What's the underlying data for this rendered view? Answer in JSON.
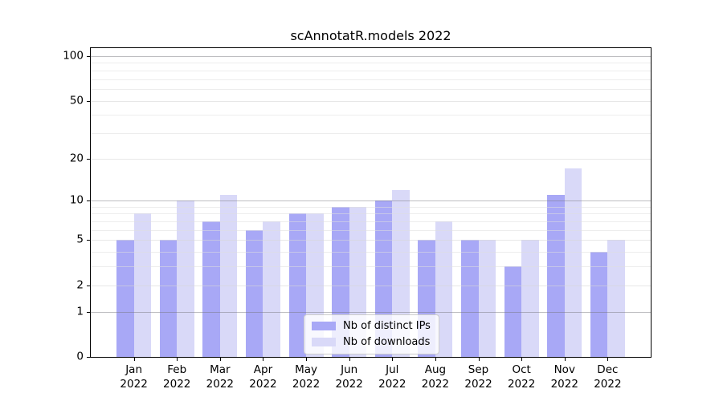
{
  "chart_data": {
    "type": "bar",
    "title": "scAnnotatR.models 2022",
    "categories": [
      "Jan",
      "Feb",
      "Mar",
      "Apr",
      "May",
      "Jun",
      "Jul",
      "Aug",
      "Sep",
      "Oct",
      "Nov",
      "Dec"
    ],
    "year": "2022",
    "series": [
      {
        "name": "Nb of distinct IPs",
        "color": "#a8a8f6",
        "values": [
          5,
          5,
          7,
          6,
          8,
          9,
          10,
          5,
          5,
          3,
          11,
          4
        ]
      },
      {
        "name": "Nb of downloads",
        "color": "#d9d9f8",
        "values": [
          8,
          10,
          11,
          7,
          8,
          9,
          12,
          7,
          5,
          5,
          17,
          5
        ]
      }
    ],
    "xlabel": "",
    "ylabel": "",
    "y_axis": {
      "scale": "log1p",
      "ticks": [
        0,
        1,
        2,
        5,
        10,
        20,
        50,
        100
      ],
      "minor_ticks": [
        3,
        4,
        6,
        7,
        8,
        9,
        30,
        40,
        60,
        70,
        80,
        90
      ],
      "emphasized_ticks": [
        1,
        10,
        100
      ],
      "min": 0,
      "max": 100
    },
    "grid": "on",
    "legend_position": "inside lower center-right",
    "bar_group_fraction": 0.4
  },
  "colors": {
    "bar_distinct_ips": "#a8a8f6",
    "bar_downloads": "#d9d9f8",
    "grid_emphasized": "#b5b5b8",
    "grid_light": "#ececec",
    "spine": "#000000",
    "background": "#ffffff"
  }
}
